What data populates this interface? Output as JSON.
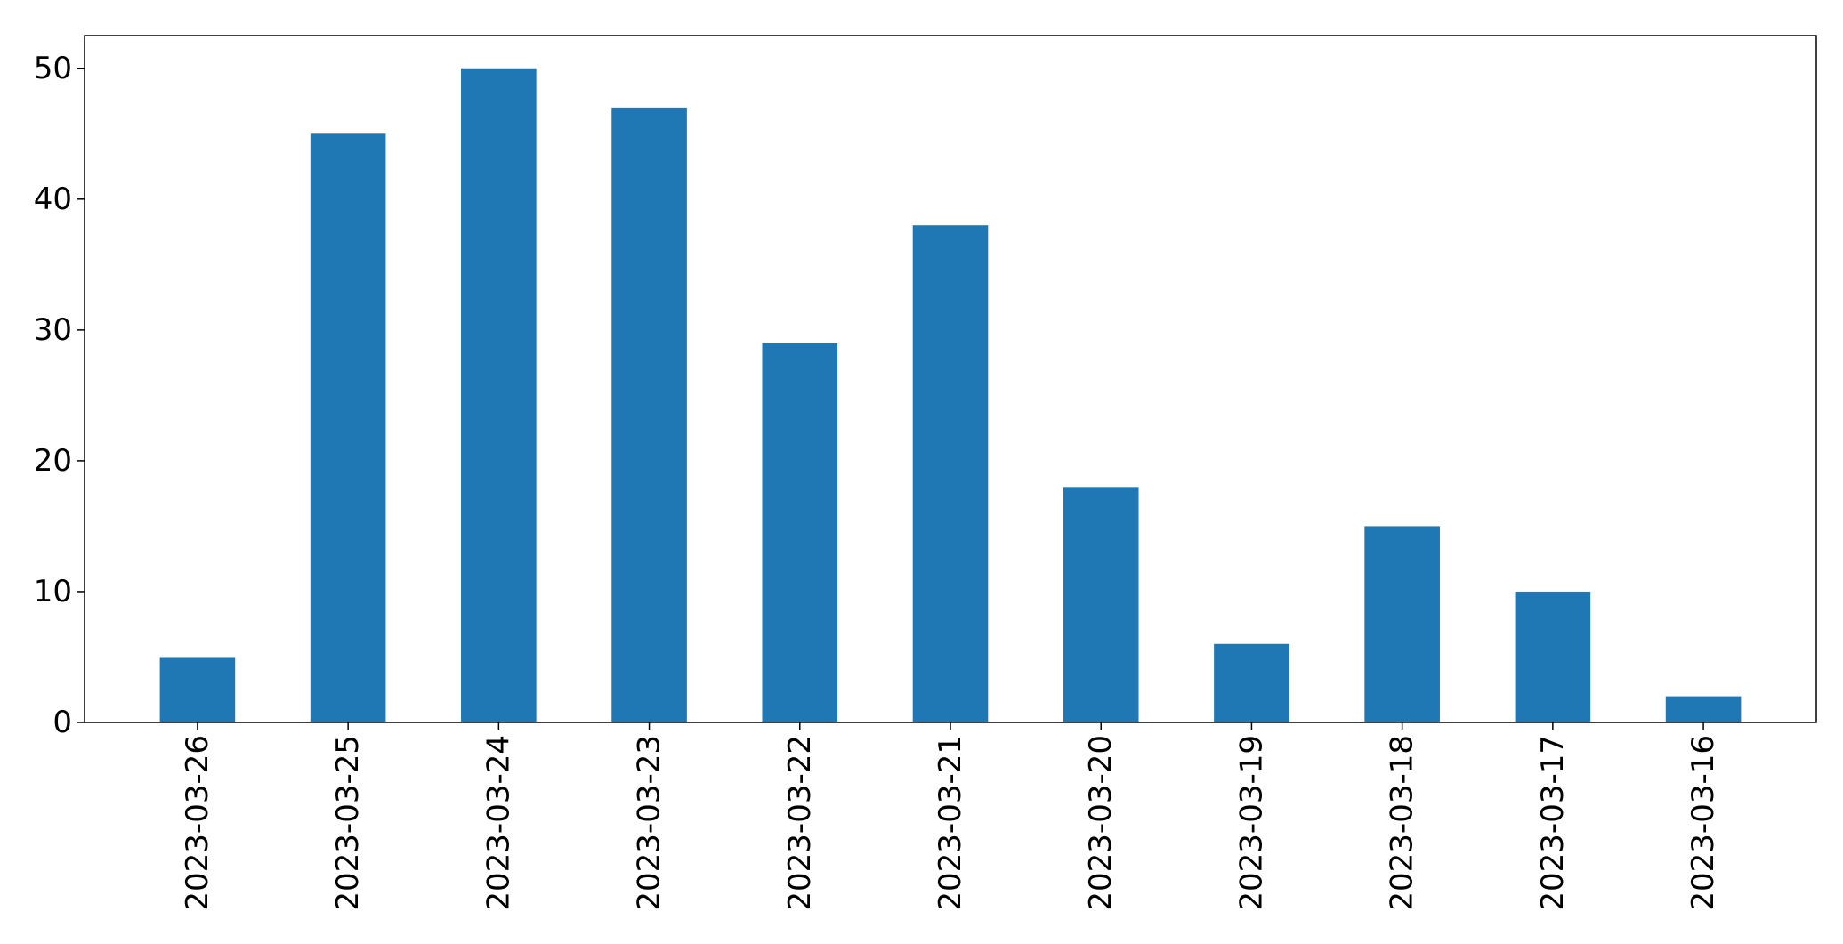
{
  "chart_data": {
    "type": "bar",
    "categories": [
      "2023-03-26",
      "2023-03-25",
      "2023-03-24",
      "2023-03-23",
      "2023-03-22",
      "2023-03-21",
      "2023-03-20",
      "2023-03-19",
      "2023-03-18",
      "2023-03-17",
      "2023-03-16"
    ],
    "values": [
      5,
      45,
      50,
      47,
      29,
      38,
      18,
      6,
      15,
      10,
      2
    ],
    "title": "",
    "xlabel": "",
    "ylabel": "",
    "ylim": [
      0,
      52.5
    ],
    "yticks": [
      0,
      10,
      20,
      30,
      40,
      50
    ],
    "x_tick_rotation": "vertical",
    "grid": false,
    "legend": "none",
    "colors": {
      "bar": "#1f77b4",
      "axes": "#000000",
      "background": "#ffffff"
    }
  }
}
